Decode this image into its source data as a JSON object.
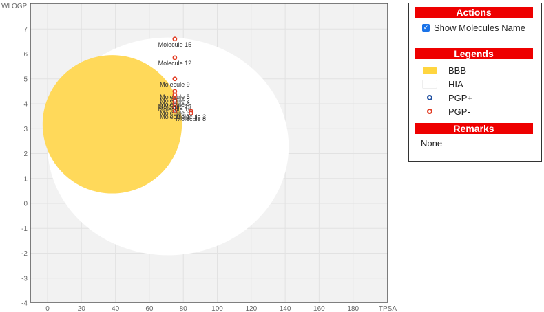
{
  "chart_data": {
    "type": "scatter",
    "xlabel": "TPSA",
    "ylabel": "WLOGP",
    "xlim": [
      -10,
      200
    ],
    "ylim": [
      -4,
      8
    ],
    "xticks": [
      "0",
      "20",
      "40",
      "60",
      "80",
      "100",
      "120",
      "140",
      "160",
      "180"
    ],
    "yticks": [
      "-4",
      "-3",
      "-2",
      "-1",
      "0",
      "1",
      "2",
      "3",
      "4",
      "5",
      "6",
      "7"
    ],
    "grid": true,
    "regions": [
      {
        "name": "HIA",
        "shape": "ellipse",
        "center": [
          71.05,
          2.29
        ],
        "rx": 142.081,
        "ry": 8.74,
        "rotation_deg": 0,
        "color": "#ffffff"
      },
      {
        "name": "BBB",
        "shape": "ellipse",
        "center": [
          38.117,
          3.177
        ],
        "rx": 82.061,
        "ry": 5.557,
        "rotation_deg": 0,
        "color": "#ffd95a"
      }
    ],
    "points": [
      {
        "name": "Molecule 15",
        "x": 75,
        "y": 6.6,
        "class": "PGP-"
      },
      {
        "name": "Molecule 12",
        "x": 75,
        "y": 5.85,
        "class": "PGP-"
      },
      {
        "name": "Molecule 9",
        "x": 75,
        "y": 5.0,
        "class": "PGP-"
      },
      {
        "name": "Molecule 5",
        "x": 75,
        "y": 4.5,
        "class": "PGP-"
      },
      {
        "name": "Molecule 2",
        "x": 75,
        "y": 4.35,
        "class": "PGP-"
      },
      {
        "name": "Molecule 4",
        "x": 75,
        "y": 4.2,
        "class": "PGP-"
      },
      {
        "name": "Molecule 13",
        "x": 75,
        "y": 4.1,
        "class": "PGP-"
      },
      {
        "name": "Molecule 10",
        "x": 75,
        "y": 4.0,
        "class": "PGP-"
      },
      {
        "name": "Molecule 6",
        "x": 75,
        "y": 3.85,
        "class": "PGP-"
      },
      {
        "name": "Molecule 1",
        "x": 75,
        "y": 3.7,
        "class": "PGP-"
      },
      {
        "name": "Molecule 3",
        "x": 84.5,
        "y": 3.7,
        "class": "PGP-"
      },
      {
        "name": "Molecule 8",
        "x": 84.5,
        "y": 3.62,
        "class": "PGP-"
      }
    ]
  },
  "panel": {
    "actions_header": "Actions",
    "show_names_label": "Show Molecules Name",
    "show_names_checked": true,
    "legends_header": "Legends",
    "legend_items": [
      {
        "label": "BBB",
        "kind": "rect",
        "color": "#ffd53f"
      },
      {
        "label": "HIA",
        "kind": "rect",
        "color": "#ffffff"
      },
      {
        "label": "PGP+",
        "kind": "dot",
        "color": "#1f4fa0"
      },
      {
        "label": "PGP-",
        "kind": "dot",
        "color": "#e23b22"
      }
    ],
    "remarks_header": "Remarks",
    "remarks_text": "None"
  }
}
